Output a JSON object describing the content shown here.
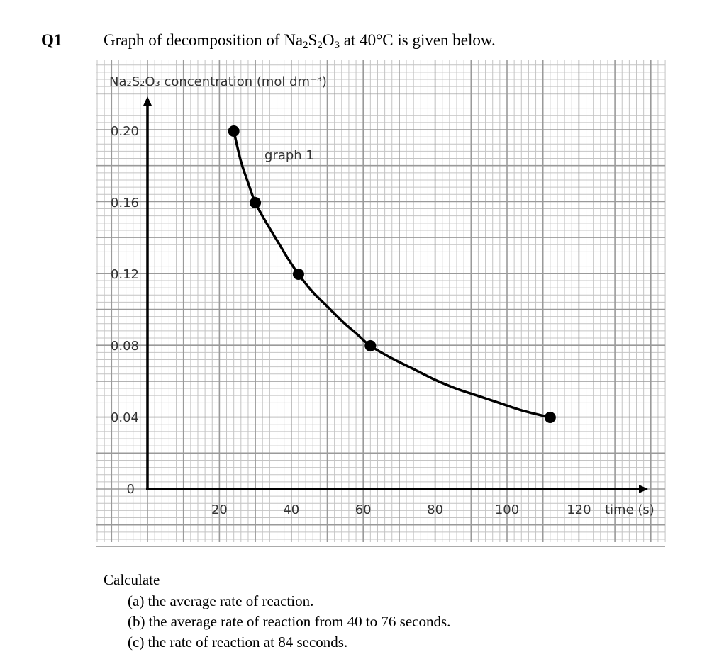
{
  "question": {
    "number": "Q1",
    "text_before": "Graph of decomposition of Na",
    "sub1": "2",
    "text_s": "S",
    "sub2": "2",
    "text_o": "O",
    "sub3": "3",
    "text_after": " at 40°C is given below."
  },
  "chart_data": {
    "type": "line",
    "ylabel": "Na₂S₂O₃ concentration (mol dm⁻³)",
    "xlabel": "time (s)",
    "curve_label": "graph 1",
    "xlim": [
      0,
      140
    ],
    "ylim": [
      0,
      0.2
    ],
    "x_ticks": [
      "20",
      "40",
      "60",
      "80",
      "100",
      "120"
    ],
    "x_tick_values": [
      20,
      40,
      60,
      80,
      100,
      120
    ],
    "y_ticks": [
      "0",
      "0.04",
      "0.08",
      "0.12",
      "0.16",
      "0.20"
    ],
    "y_tick_values": [
      0,
      0.04,
      0.08,
      0.12,
      0.16,
      0.2
    ],
    "grid": true,
    "points": [
      {
        "x": 24,
        "y": 0.2
      },
      {
        "x": 30,
        "y": 0.16
      },
      {
        "x": 42,
        "y": 0.12
      },
      {
        "x": 62,
        "y": 0.08
      },
      {
        "x": 112,
        "y": 0.04
      }
    ],
    "curve": [
      [
        24,
        0.2
      ],
      [
        26,
        0.183
      ],
      [
        28,
        0.171
      ],
      [
        30,
        0.16
      ],
      [
        33,
        0.149
      ],
      [
        36,
        0.139
      ],
      [
        39,
        0.129
      ],
      [
        42,
        0.12
      ],
      [
        46,
        0.11
      ],
      [
        50,
        0.102
      ],
      [
        54,
        0.094
      ],
      [
        58,
        0.087
      ],
      [
        62,
        0.08
      ],
      [
        68,
        0.073
      ],
      [
        74,
        0.067
      ],
      [
        80,
        0.061
      ],
      [
        86,
        0.056
      ],
      [
        92,
        0.052
      ],
      [
        98,
        0.048
      ],
      [
        104,
        0.044
      ],
      [
        112,
        0.04
      ]
    ]
  },
  "calculate": {
    "heading": "Calculate",
    "items": [
      "(a)  the average rate of reaction.",
      "(b)  the average rate of reaction from 40 to 76 seconds.",
      "(c)  the rate of reaction at 84 seconds."
    ]
  }
}
